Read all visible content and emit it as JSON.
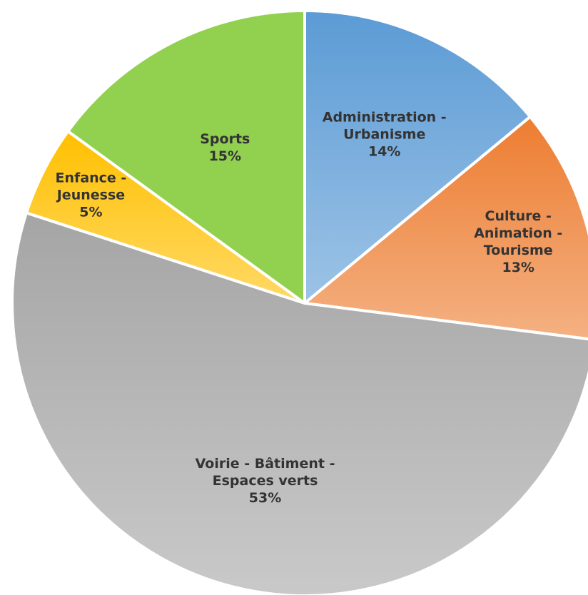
{
  "chart_data": {
    "type": "pie",
    "title": "",
    "slices": [
      {
        "label_lines": [
          "Administration -",
          "Urbanisme"
        ],
        "value": 14,
        "value_label": "14%",
        "color": "#5b9bd5",
        "color_light": "#9dc3e6"
      },
      {
        "label_lines": [
          "Culture -",
          "Animation -",
          "Tourisme"
        ],
        "value": 13,
        "value_label": "13%",
        "color": "#ed7d31",
        "color_light": "#f4b183"
      },
      {
        "label_lines": [
          "Voirie - Bâtiment -",
          "Espaces verts"
        ],
        "value": 53,
        "value_label": "53%",
        "color": "#a5a5a5",
        "color_light": "#c9c9c9"
      },
      {
        "label_lines": [
          "Enfance -",
          "Jeunesse"
        ],
        "value": 5,
        "value_label": "5%",
        "color": "#ffc000",
        "color_light": "#ffd966"
      },
      {
        "label_lines": [
          "Sports"
        ],
        "value": 15,
        "value_label": "15%",
        "color": "#92d050",
        "color_light": "#92d050"
      }
    ]
  }
}
